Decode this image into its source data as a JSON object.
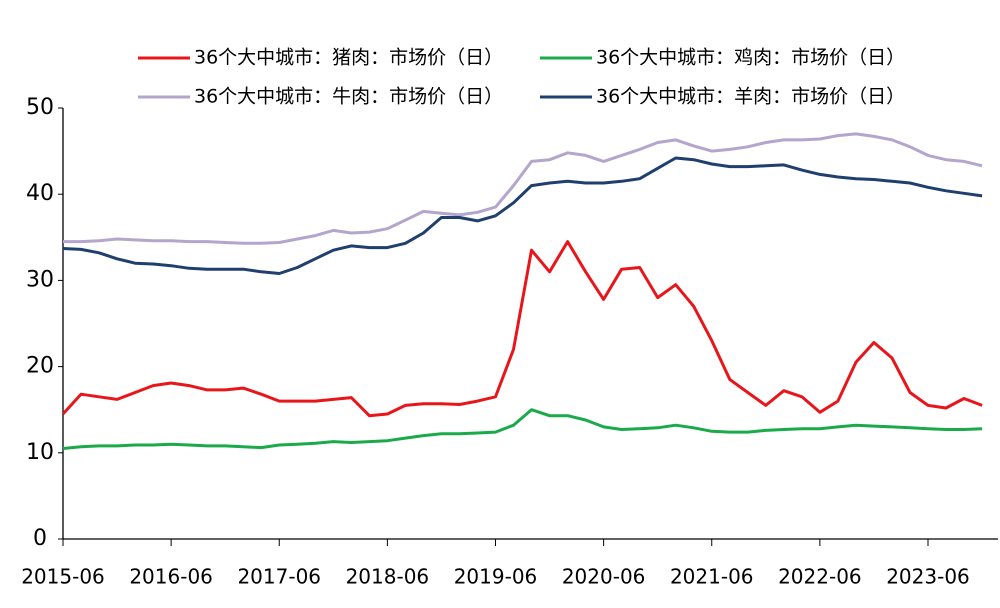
{
  "chart_data": {
    "type": "line",
    "x": [
      "2015-06",
      "2015-08",
      "2015-10",
      "2015-12",
      "2016-02",
      "2016-04",
      "2016-06",
      "2016-08",
      "2016-10",
      "2016-12",
      "2017-02",
      "2017-04",
      "2017-06",
      "2017-08",
      "2017-10",
      "2017-12",
      "2018-02",
      "2018-04",
      "2018-06",
      "2018-08",
      "2018-10",
      "2018-12",
      "2019-02",
      "2019-04",
      "2019-06",
      "2019-08",
      "2019-10",
      "2019-12",
      "2020-02",
      "2020-04",
      "2020-06",
      "2020-08",
      "2020-10",
      "2020-12",
      "2021-02",
      "2021-04",
      "2021-06",
      "2021-08",
      "2021-10",
      "2021-12",
      "2022-02",
      "2022-04",
      "2022-06",
      "2022-08",
      "2022-10",
      "2022-12",
      "2023-02",
      "2023-04",
      "2023-06",
      "2023-08",
      "2023-10",
      "2023-12"
    ],
    "series": [
      {
        "name": "36个大中城市：猪肉：市场价（日）",
        "color": "#e8161b",
        "values": [
          14.5,
          16.8,
          16.5,
          16.2,
          17.0,
          17.8,
          18.1,
          17.8,
          17.3,
          17.3,
          17.5,
          16.8,
          16.0,
          16.0,
          16.0,
          16.2,
          16.4,
          14.3,
          14.5,
          15.5,
          15.7,
          15.7,
          15.6,
          16.0,
          16.5,
          22.0,
          33.5,
          31.0,
          34.5,
          31.0,
          27.8,
          31.3,
          31.5,
          28.0,
          29.5,
          27.0,
          23.0,
          18.5,
          17.0,
          15.5,
          17.2,
          16.5,
          14.7,
          16.0,
          20.5,
          22.8,
          21.0,
          17.0,
          15.5,
          15.2,
          16.3,
          15.5
        ]
      },
      {
        "name": "36个大中城市：鸡肉：市场价（日）",
        "color": "#1aaa4a",
        "values": [
          10.5,
          10.7,
          10.8,
          10.8,
          10.9,
          10.9,
          11.0,
          10.9,
          10.8,
          10.8,
          10.7,
          10.6,
          10.9,
          11.0,
          11.1,
          11.3,
          11.2,
          11.3,
          11.4,
          11.7,
          12.0,
          12.2,
          12.2,
          12.3,
          12.4,
          13.2,
          15.0,
          14.3,
          14.3,
          13.8,
          13.0,
          12.7,
          12.8,
          12.9,
          13.2,
          12.9,
          12.5,
          12.4,
          12.4,
          12.6,
          12.7,
          12.8,
          12.8,
          13.0,
          13.2,
          13.1,
          13.0,
          12.9,
          12.8,
          12.7,
          12.7,
          12.8
        ]
      },
      {
        "name": "36个大中城市：牛肉：市场价（日）",
        "color": "#b4a5cc",
        "values": [
          34.5,
          34.5,
          34.6,
          34.8,
          34.7,
          34.6,
          34.6,
          34.5,
          34.5,
          34.4,
          34.3,
          34.3,
          34.4,
          34.8,
          35.2,
          35.8,
          35.5,
          35.6,
          36.0,
          37.0,
          38.0,
          37.8,
          37.6,
          37.9,
          38.5,
          41.0,
          43.8,
          44.0,
          44.8,
          44.5,
          43.8,
          44.5,
          45.2,
          46.0,
          46.3,
          45.6,
          45.0,
          45.2,
          45.5,
          46.0,
          46.3,
          46.3,
          46.4,
          46.8,
          47.0,
          46.7,
          46.3,
          45.5,
          44.5,
          44.0,
          43.8,
          43.3
        ]
      },
      {
        "name": "36个大中城市：羊肉：市场价（日）",
        "color": "#1f3f6e",
        "values": [
          33.7,
          33.6,
          33.2,
          32.5,
          32.0,
          31.9,
          31.7,
          31.4,
          31.3,
          31.3,
          31.3,
          31.0,
          30.8,
          31.5,
          32.5,
          33.5,
          34.0,
          33.8,
          33.8,
          34.3,
          35.5,
          37.3,
          37.3,
          36.9,
          37.5,
          39.0,
          41.0,
          41.3,
          41.5,
          41.3,
          41.3,
          41.5,
          41.8,
          43.0,
          44.2,
          44.0,
          43.5,
          43.2,
          43.2,
          43.3,
          43.4,
          42.8,
          42.3,
          42.0,
          41.8,
          41.7,
          41.5,
          41.3,
          40.8,
          40.4,
          40.1,
          39.8
        ]
      }
    ],
    "xticks": [
      "2015-06",
      "2016-06",
      "2017-06",
      "2018-06",
      "2019-06",
      "2020-06",
      "2021-06",
      "2022-06",
      "2023-06"
    ],
    "ylim": [
      0,
      50
    ],
    "yticks": [
      0,
      10,
      20,
      30,
      40,
      50
    ],
    "grid": false
  }
}
